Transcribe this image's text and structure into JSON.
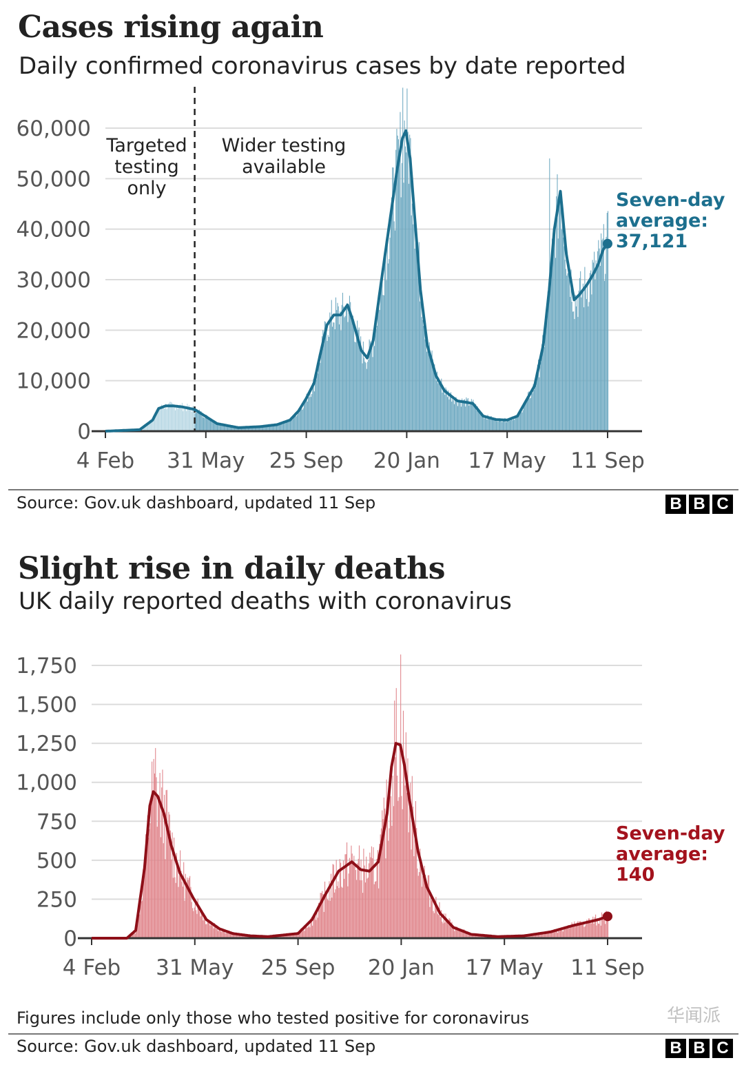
{
  "chart_data": [
    {
      "type": "bar",
      "title": "Cases rising again",
      "subtitle": "Daily confirmed coronavirus cases by date reported",
      "xlabel": "",
      "ylabel": "",
      "ylim": [
        0,
        60000
      ],
      "yticks": [
        0,
        10000,
        20000,
        30000,
        40000,
        50000,
        60000
      ],
      "ytick_labels": [
        "0",
        "10,000",
        "20,000",
        "30,000",
        "40,000",
        "50,000",
        "60,000"
      ],
      "xtick_labels": [
        "4 Feb",
        "31 May",
        "25 Sep",
        "20 Jan",
        "17 May",
        "11 Sep"
      ],
      "x_range_days": [
        0,
        585
      ],
      "xtick_days": [
        0,
        117,
        234,
        351,
        468,
        585
      ],
      "divider_day": 104,
      "annotations": [
        "Targeted testing only",
        "Wider testing available"
      ],
      "average_label": [
        "Seven-day",
        "average:",
        "37,121"
      ],
      "average_value": 37121,
      "colors": {
        "bar_early": "#b9d8e4",
        "bar": "#6ea9c1",
        "line": "#1c6f8e",
        "label": "#1c6f8e"
      },
      "seven_day_average": {
        "day": [
          0,
          40,
          55,
          62,
          70,
          80,
          90,
          104,
          130,
          155,
          180,
          200,
          215,
          225,
          234,
          243,
          250,
          258,
          266,
          274,
          282,
          288,
          298,
          305,
          312,
          320,
          330,
          340,
          346,
          350,
          355,
          360,
          367,
          375,
          385,
          395,
          410,
          428,
          440,
          455,
          468,
          480,
          500,
          510,
          517,
          523,
          530,
          537,
          546,
          552,
          561,
          568,
          574,
          580,
          585
        ],
        "value": [
          0,
          300,
          2200,
          4500,
          5000,
          5000,
          4800,
          4300,
          1500,
          700,
          900,
          1300,
          2200,
          4000,
          6500,
          9500,
          15000,
          21000,
          23000,
          23000,
          25000,
          22000,
          16000,
          14500,
          18000,
          28000,
          40000,
          52000,
          58000,
          59500,
          54000,
          43000,
          28000,
          17000,
          11000,
          8000,
          6000,
          5500,
          3000,
          2300,
          2200,
          3000,
          9000,
          17000,
          28000,
          40000,
          47500,
          35000,
          26000,
          27000,
          29000,
          31000,
          33000,
          36000,
          37121
        ]
      },
      "daily": {
        "day": [
          0,
          40,
          55,
          62,
          70,
          80,
          90,
          104,
          130,
          155,
          180,
          200,
          215,
          225,
          234,
          243,
          250,
          258,
          266,
          274,
          282,
          288,
          298,
          305,
          312,
          320,
          330,
          340,
          346,
          350,
          355,
          360,
          367,
          375,
          385,
          395,
          410,
          428,
          440,
          455,
          468,
          480,
          500,
          510,
          517,
          523,
          530,
          537,
          546,
          552,
          561,
          568,
          574,
          580,
          585
        ],
        "value": [
          0,
          300,
          2200,
          4500,
          5000,
          5000,
          4800,
          4300,
          1500,
          700,
          900,
          1300,
          2200,
          4000,
          6500,
          9500,
          15000,
          21000,
          23000,
          23000,
          25000,
          22000,
          16000,
          14500,
          18000,
          28000,
          40000,
          52000,
          58000,
          59500,
          54000,
          43000,
          28000,
          17000,
          11000,
          8000,
          6000,
          5500,
          3000,
          2300,
          2200,
          3000,
          9000,
          17000,
          28000,
          40000,
          47500,
          35000,
          26000,
          27000,
          29000,
          31000,
          33000,
          36000,
          37121
        ],
        "noise_amplitude": 0.18,
        "peak_spikes": [
          [
            346,
            68000
          ],
          [
            517,
            54000
          ],
          [
            580,
            41000
          ]
        ]
      }
    },
    {
      "type": "bar",
      "title": "Slight rise in daily deaths",
      "subtitle": "UK daily reported deaths with coronavirus",
      "xlabel": "",
      "ylabel": "",
      "ylim": [
        0,
        1750
      ],
      "yticks": [
        0,
        250,
        500,
        750,
        1000,
        1250,
        1500,
        1750
      ],
      "ytick_labels": [
        "0",
        "250",
        "500",
        "750",
        "1,000",
        "1,250",
        "1,500",
        "1,750"
      ],
      "xtick_labels": [
        "4 Feb",
        "31 May",
        "25 Sep",
        "20 Jan",
        "17 May",
        "11 Sep"
      ],
      "x_range_days": [
        0,
        585
      ],
      "xtick_days": [
        0,
        117,
        234,
        351,
        468,
        585
      ],
      "average_label": [
        "Seven-day",
        "average:",
        "140"
      ],
      "average_value": 140,
      "colors": {
        "bar": "#e0868c",
        "line": "#8e0f18",
        "label": "#a3121d"
      },
      "seven_day_average": {
        "day": [
          0,
          40,
          50,
          60,
          66,
          70,
          75,
          82,
          90,
          100,
          115,
          130,
          145,
          160,
          180,
          200,
          234,
          250,
          265,
          280,
          295,
          305,
          315,
          325,
          335,
          340,
          345,
          350,
          355,
          360,
          370,
          380,
          395,
          410,
          430,
          460,
          490,
          520,
          545,
          560,
          575,
          585
        ],
        "value": [
          0,
          0,
          50,
          450,
          850,
          940,
          910,
          800,
          600,
          420,
          260,
          120,
          60,
          30,
          15,
          10,
          30,
          120,
          280,
          430,
          490,
          440,
          430,
          490,
          800,
          1100,
          1250,
          1240,
          1100,
          900,
          560,
          330,
          160,
          70,
          25,
          10,
          15,
          40,
          80,
          100,
          120,
          140
        ]
      },
      "daily": {
        "day": [
          0,
          40,
          50,
          60,
          66,
          70,
          75,
          82,
          90,
          100,
          115,
          130,
          145,
          160,
          180,
          200,
          234,
          250,
          265,
          280,
          295,
          305,
          315,
          325,
          335,
          340,
          345,
          350,
          355,
          360,
          370,
          380,
          395,
          410,
          430,
          460,
          490,
          520,
          545,
          560,
          575,
          585
        ],
        "value": [
          0,
          0,
          50,
          450,
          850,
          940,
          910,
          800,
          600,
          420,
          260,
          120,
          60,
          30,
          15,
          10,
          30,
          120,
          280,
          430,
          490,
          440,
          430,
          490,
          800,
          1100,
          1250,
          1240,
          1100,
          900,
          560,
          330,
          160,
          70,
          25,
          10,
          15,
          40,
          80,
          100,
          120,
          140
        ],
        "noise_amplitude": 0.35,
        "peak_spikes": [
          [
            72,
            1220
          ],
          [
            350,
            1820
          ],
          [
            587,
            200
          ]
        ]
      }
    }
  ],
  "footer1": {
    "source": "Source: Gov.uk dashboard, updated 11 Sep"
  },
  "footer2": {
    "note": "Figures include only those who tested positive for coronavirus",
    "source": "Source: Gov.uk dashboard, updated 11 Sep"
  },
  "logo": {
    "letters": [
      "B",
      "B",
      "C"
    ]
  },
  "watermark": "华闻派"
}
